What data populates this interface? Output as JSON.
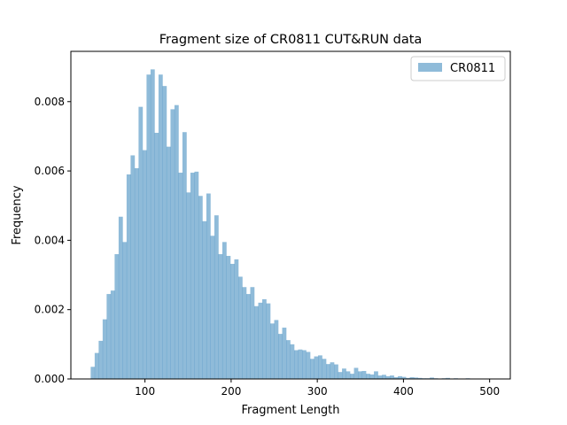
{
  "chart_data": {
    "type": "bar",
    "title": "Fragment size of CR0811 CUT&RUN data",
    "xlabel": "Fragment Length",
    "ylabel": "Frequency",
    "xlim": [
      14,
      524
    ],
    "ylim": [
      0,
      0.00945
    ],
    "x_ticks": [
      100,
      200,
      300,
      400,
      500
    ],
    "y_ticks": [
      0.0,
      0.002,
      0.004,
      0.006,
      0.008
    ],
    "y_tick_format": 3,
    "legend": {
      "position": "top-right"
    },
    "bar_color": "#1f77b4",
    "bar_opacity": 0.5,
    "bin_start": 37,
    "bin_width": 4.63,
    "series": [
      {
        "name": "CR0811",
        "values": [
          0.00035,
          0.00075,
          0.0011,
          0.00172,
          0.00245,
          0.00255,
          0.0036,
          0.00468,
          0.00395,
          0.0059,
          0.00645,
          0.00608,
          0.00785,
          0.0066,
          0.00878,
          0.00893,
          0.0071,
          0.00878,
          0.00845,
          0.0067,
          0.00778,
          0.0079,
          0.00595,
          0.00712,
          0.00538,
          0.00595,
          0.00598,
          0.00528,
          0.00455,
          0.00535,
          0.00413,
          0.00472,
          0.0036,
          0.00395,
          0.00355,
          0.00332,
          0.00345,
          0.00295,
          0.00265,
          0.00245,
          0.00265,
          0.0021,
          0.0022,
          0.0023,
          0.00218,
          0.0016,
          0.0017,
          0.0013,
          0.00148,
          0.00112,
          0.001,
          0.00083,
          0.00085,
          0.00083,
          0.00078,
          0.00058,
          0.00065,
          0.00068,
          0.00058,
          0.00043,
          0.00048,
          0.00042,
          0.0002,
          0.0003,
          0.00022,
          0.00015,
          0.00032,
          0.00022,
          0.00023,
          0.00015,
          0.00013,
          0.00022,
          0.0001,
          0.00012,
          8e-05,
          0.0001,
          5e-05,
          8e-05,
          6e-05,
          3e-05,
          5e-05,
          4e-05,
          3e-05,
          2e-05,
          2e-05,
          4e-05,
          2e-05,
          1e-05,
          2e-05,
          3e-05,
          1e-05,
          2e-05,
          1e-05,
          1e-05,
          2e-05,
          1e-05,
          1e-05,
          1e-05,
          1e-05,
          1e-05
        ]
      }
    ]
  }
}
